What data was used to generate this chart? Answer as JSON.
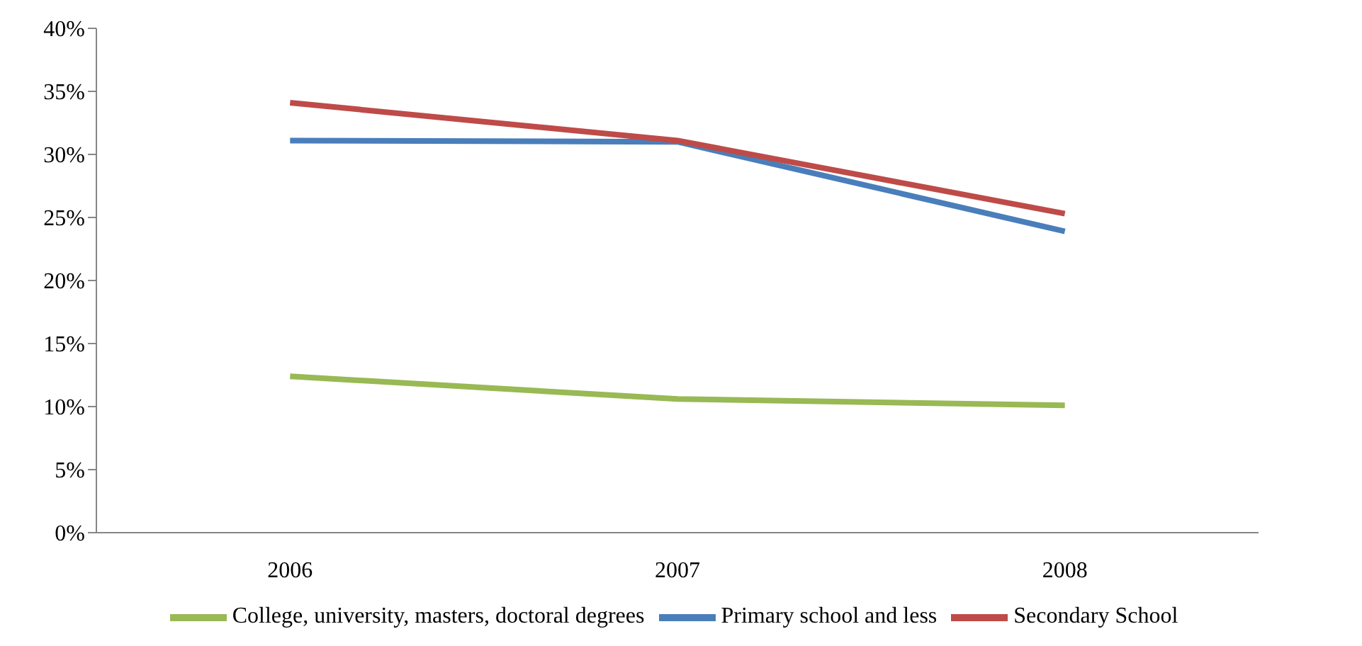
{
  "chart_data": {
    "type": "line",
    "categories": [
      "2006",
      "2007",
      "2008"
    ],
    "series": [
      {
        "name": "Primary school and less",
        "color": "#4a7ebb",
        "values": [
          31.1,
          31.0,
          23.9
        ]
      },
      {
        "name": "Secondary School",
        "color": "#be4b48",
        "values": [
          34.1,
          31.1,
          25.3
        ]
      },
      {
        "name": "College, university, masters, doctoral degrees",
        "color": "#98b954",
        "values": [
          12.4,
          10.6,
          10.1
        ]
      }
    ],
    "ylim": [
      0,
      40
    ],
    "yticks": [
      {
        "value": 0,
        "label": "0%"
      },
      {
        "value": 5,
        "label": "5%"
      },
      {
        "value": 10,
        "label": "10%"
      },
      {
        "value": 15,
        "label": "15%"
      },
      {
        "value": 20,
        "label": "20%"
      },
      {
        "value": 25,
        "label": "25%"
      },
      {
        "value": 30,
        "label": "30%"
      },
      {
        "value": 35,
        "label": "35%"
      },
      {
        "value": 40,
        "label": "40%"
      }
    ],
    "grid": false,
    "legend": "bottom",
    "marker": "none",
    "line_style": "solid"
  }
}
